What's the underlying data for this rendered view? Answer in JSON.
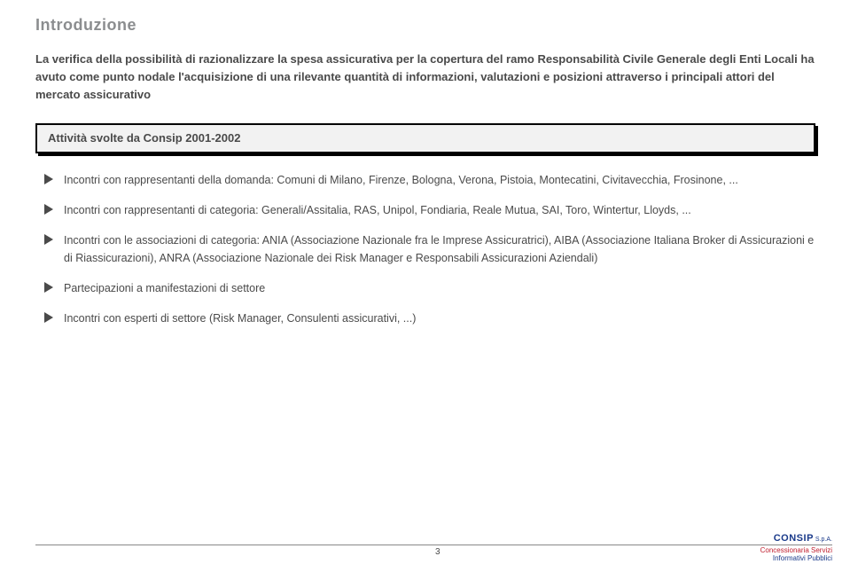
{
  "title": "Introduzione",
  "intro": "La verifica della possibilità di razionalizzare la spesa assicurativa per la copertura del ramo Responsabilità Civile Generale degli Enti Locali ha avuto come punto nodale l'acquisizione di una rilevante quantità di informazioni, valutazioni e posizioni attraverso i principali attori del mercato assicurativo",
  "activity_header": "Attività svolte da Consip 2001-2002",
  "items": [
    "Incontri con rappresentanti della domanda: Comuni di Milano, Firenze, Bologna, Verona, Pistoia, Montecatini, Civitavecchia, Frosinone, ...",
    "Incontri con rappresentanti di categoria: Generali/Assitalia, RAS, Unipol, Fondiaria, Reale Mutua, SAI, Toro, Wintertur, Lloyds, ...",
    "Incontri con le associazioni di categoria: ANIA (Associazione Nazionale fra le Imprese Assicuratrici), AIBA (Associazione Italiana Broker di Assicurazioni e di Riassicurazioni), ANRA (Associazione Nazionale dei Risk Manager e Responsabili Assicurazioni Aziendali)",
    "Partecipazioni a manifestazioni di settore",
    "Incontri con esperti di settore (Risk Manager, Consulenti assicurativi, ...)"
  ],
  "footer": {
    "brand": "CONSIP",
    "spa": "S.p.A.",
    "page": "3",
    "tag1": "Concessionaria Servizi",
    "tag2": "Informativi Pubblici"
  }
}
